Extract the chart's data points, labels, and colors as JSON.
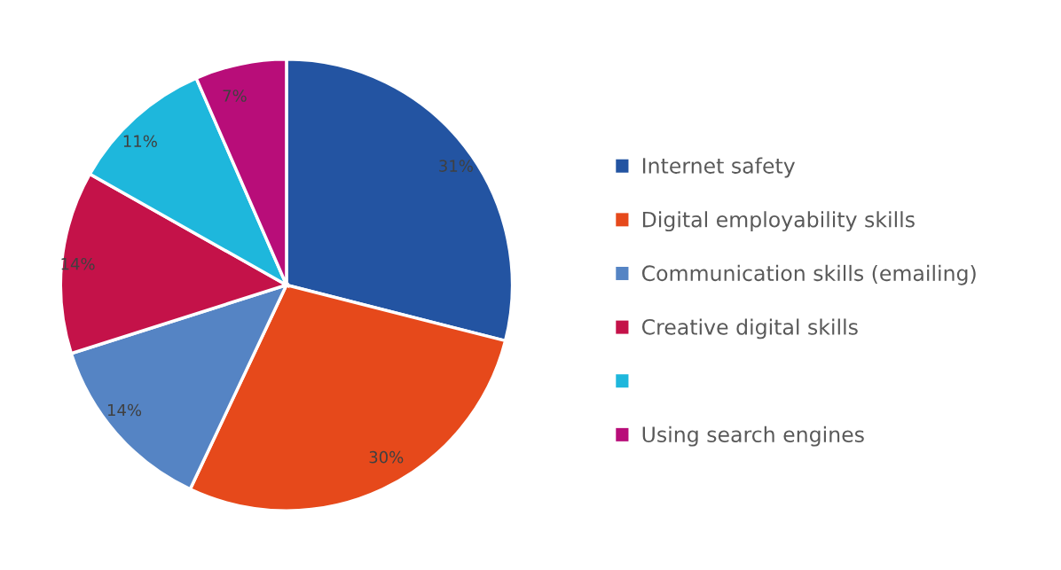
{
  "chart_data": {
    "type": "pie",
    "categories": [
      "Internet safety",
      "Digital employability skills",
      "Communication skills (emailing)",
      "Creative digital skills",
      null,
      "Using search engines"
    ],
    "values": [
      31,
      30,
      14,
      14,
      11,
      7
    ],
    "value_labels": [
      "31%",
      "30%",
      "14%",
      "14%",
      "11%",
      "7%"
    ],
    "colors": [
      "#2354a2",
      "#e6491b",
      "#5584c4",
      "#c41249",
      "#1eb7dc",
      "#b80d79"
    ],
    "legend": "right"
  }
}
